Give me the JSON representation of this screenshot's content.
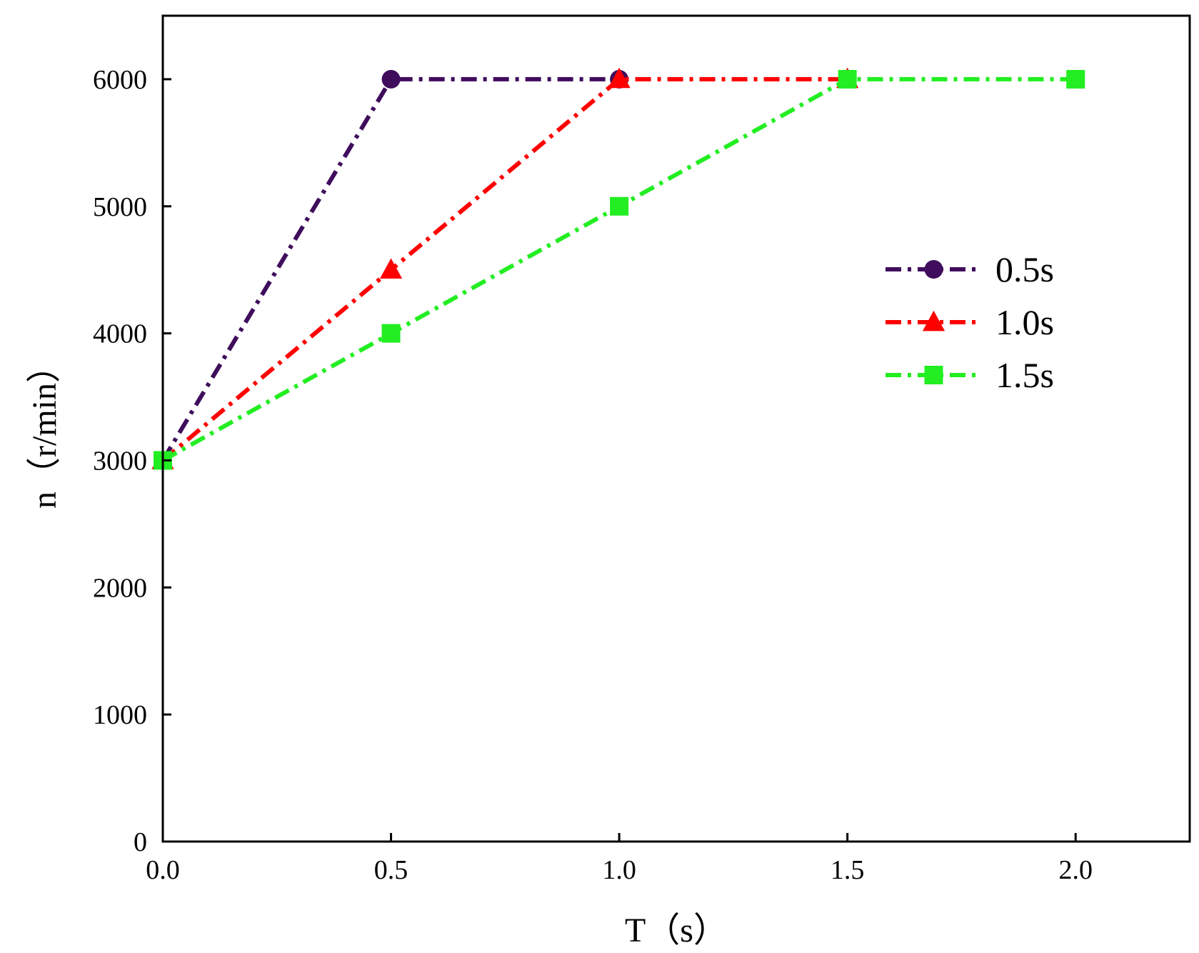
{
  "chart_data": {
    "type": "line",
    "xlabel": "T（s）",
    "ylabel": "n（r/min）",
    "xlim": [
      0,
      2.25
    ],
    "ylim": [
      0,
      6500
    ],
    "x_ticks": [
      0.0,
      0.5,
      1.0,
      1.5,
      2.0
    ],
    "x_tick_labels": [
      "0.0",
      "0.5",
      "1.0",
      "1.5",
      "2.0"
    ],
    "y_ticks": [
      0,
      1000,
      2000,
      3000,
      4000,
      5000,
      6000
    ],
    "y_tick_labels": [
      "0",
      "1000",
      "2000",
      "3000",
      "4000",
      "5000",
      "6000"
    ],
    "grid": false,
    "legend_position": "right",
    "series": [
      {
        "name": "0.5s",
        "color": "#3f0d5c",
        "marker": "circle",
        "line_style": "dash-dot",
        "x": [
          0.0,
          0.5,
          1.0
        ],
        "y": [
          3000,
          6000,
          6000
        ]
      },
      {
        "name": "1.0s",
        "color": "#ff0000",
        "marker": "triangle",
        "line_style": "dash-dot",
        "x": [
          0.0,
          0.5,
          1.0,
          1.5
        ],
        "y": [
          3000,
          4500,
          6000,
          6000
        ]
      },
      {
        "name": "1.5s",
        "color": "#22ee22",
        "marker": "square",
        "line_style": "dash-dot",
        "x": [
          0.0,
          0.5,
          1.0,
          1.5,
          2.0
        ],
        "y": [
          3000,
          4000,
          5000,
          6000,
          6000
        ]
      }
    ]
  }
}
